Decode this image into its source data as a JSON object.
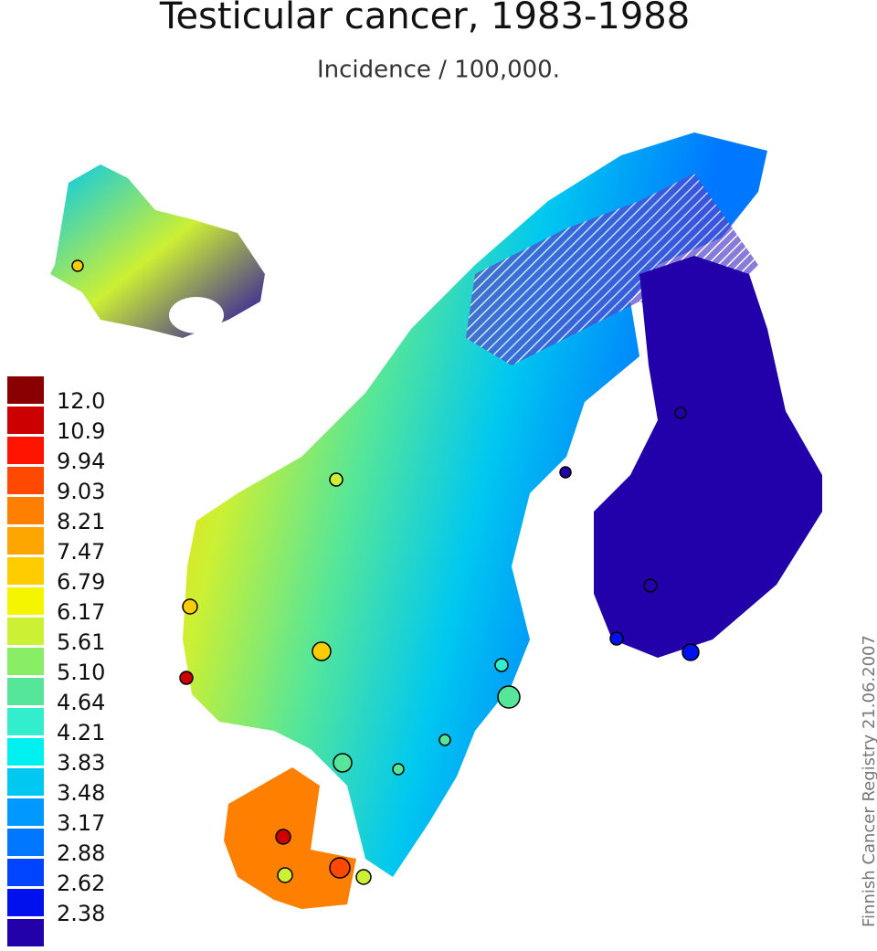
{
  "header": {
    "title": "Testicular cancer, 1983-1988",
    "subtitle": "Incidence / 100,000."
  },
  "legend": {
    "colors": [
      "#8a0000",
      "#cc0000",
      "#ff1400",
      "#ff4800",
      "#ff8000",
      "#ffa500",
      "#ffcc00",
      "#f5f500",
      "#ccf033",
      "#88ee66",
      "#55e699",
      "#33eecc",
      "#00f0f0",
      "#00c8f0",
      "#0099ff",
      "#0077ff",
      "#0044ff",
      "#0011ee",
      "#2200aa"
    ],
    "labels": [
      "12.0",
      "10.9",
      "9.94",
      "9.03",
      "8.21",
      "7.47",
      "6.79",
      "6.17",
      "5.61",
      "5.10",
      "4.64",
      "4.21",
      "3.83",
      "3.48",
      "3.17",
      "2.88",
      "2.62",
      "2.38"
    ]
  },
  "credit": "Finnish Cancer Registry 21.06.2007"
}
